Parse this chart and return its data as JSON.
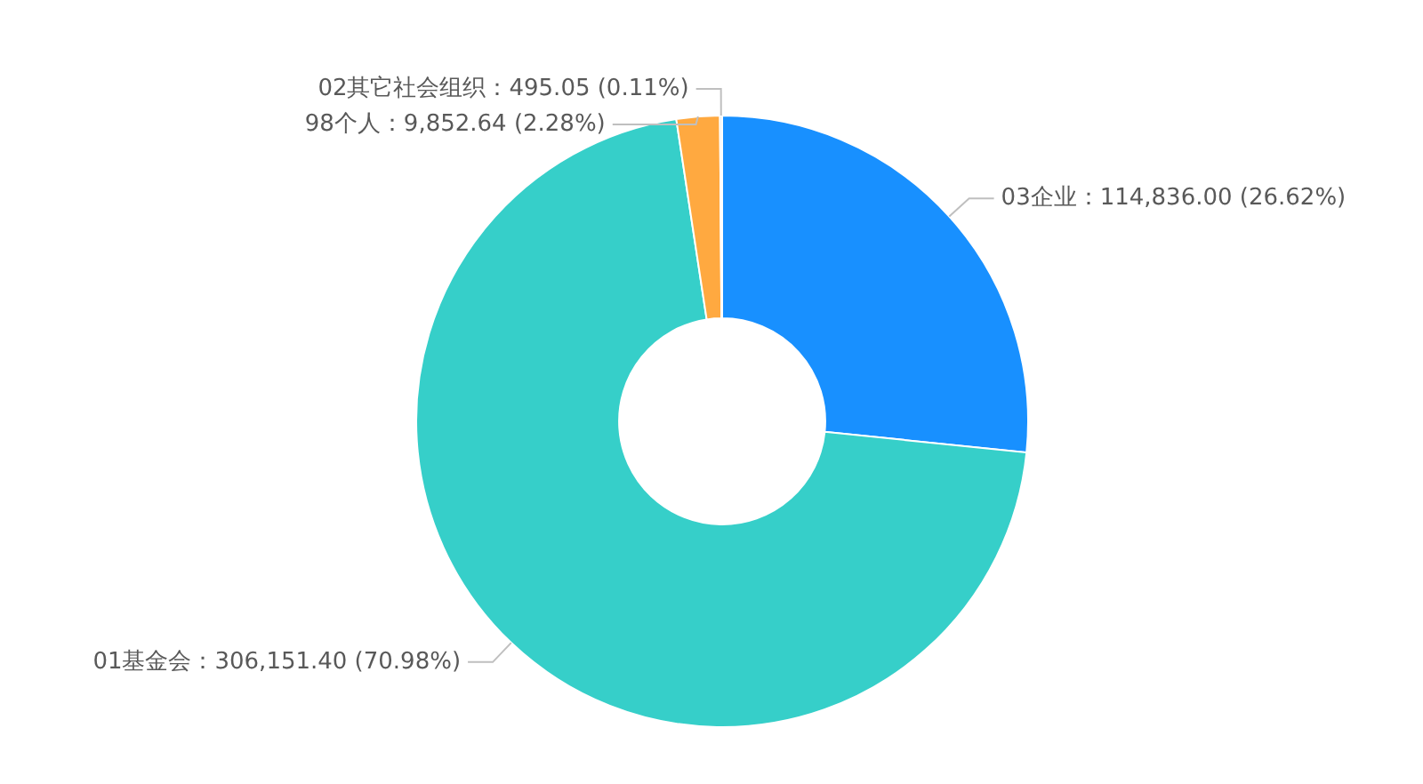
{
  "chart_data": {
    "type": "donut",
    "categories": [
      "03企业",
      "01基金会",
      "98个人",
      "02其它社会组织"
    ],
    "values": [
      114836.0,
      306151.4,
      9852.64,
      495.05
    ],
    "colors": [
      "#1890ff",
      "#36cfc9",
      "#ffa940",
      "#d9d9d9"
    ],
    "value_labels": [
      "114,836.00 (26.62%)",
      "306,151.40 (70.98%)",
      "9,852.64 (2.28%)",
      "495.05 (0.11%)"
    ]
  }
}
